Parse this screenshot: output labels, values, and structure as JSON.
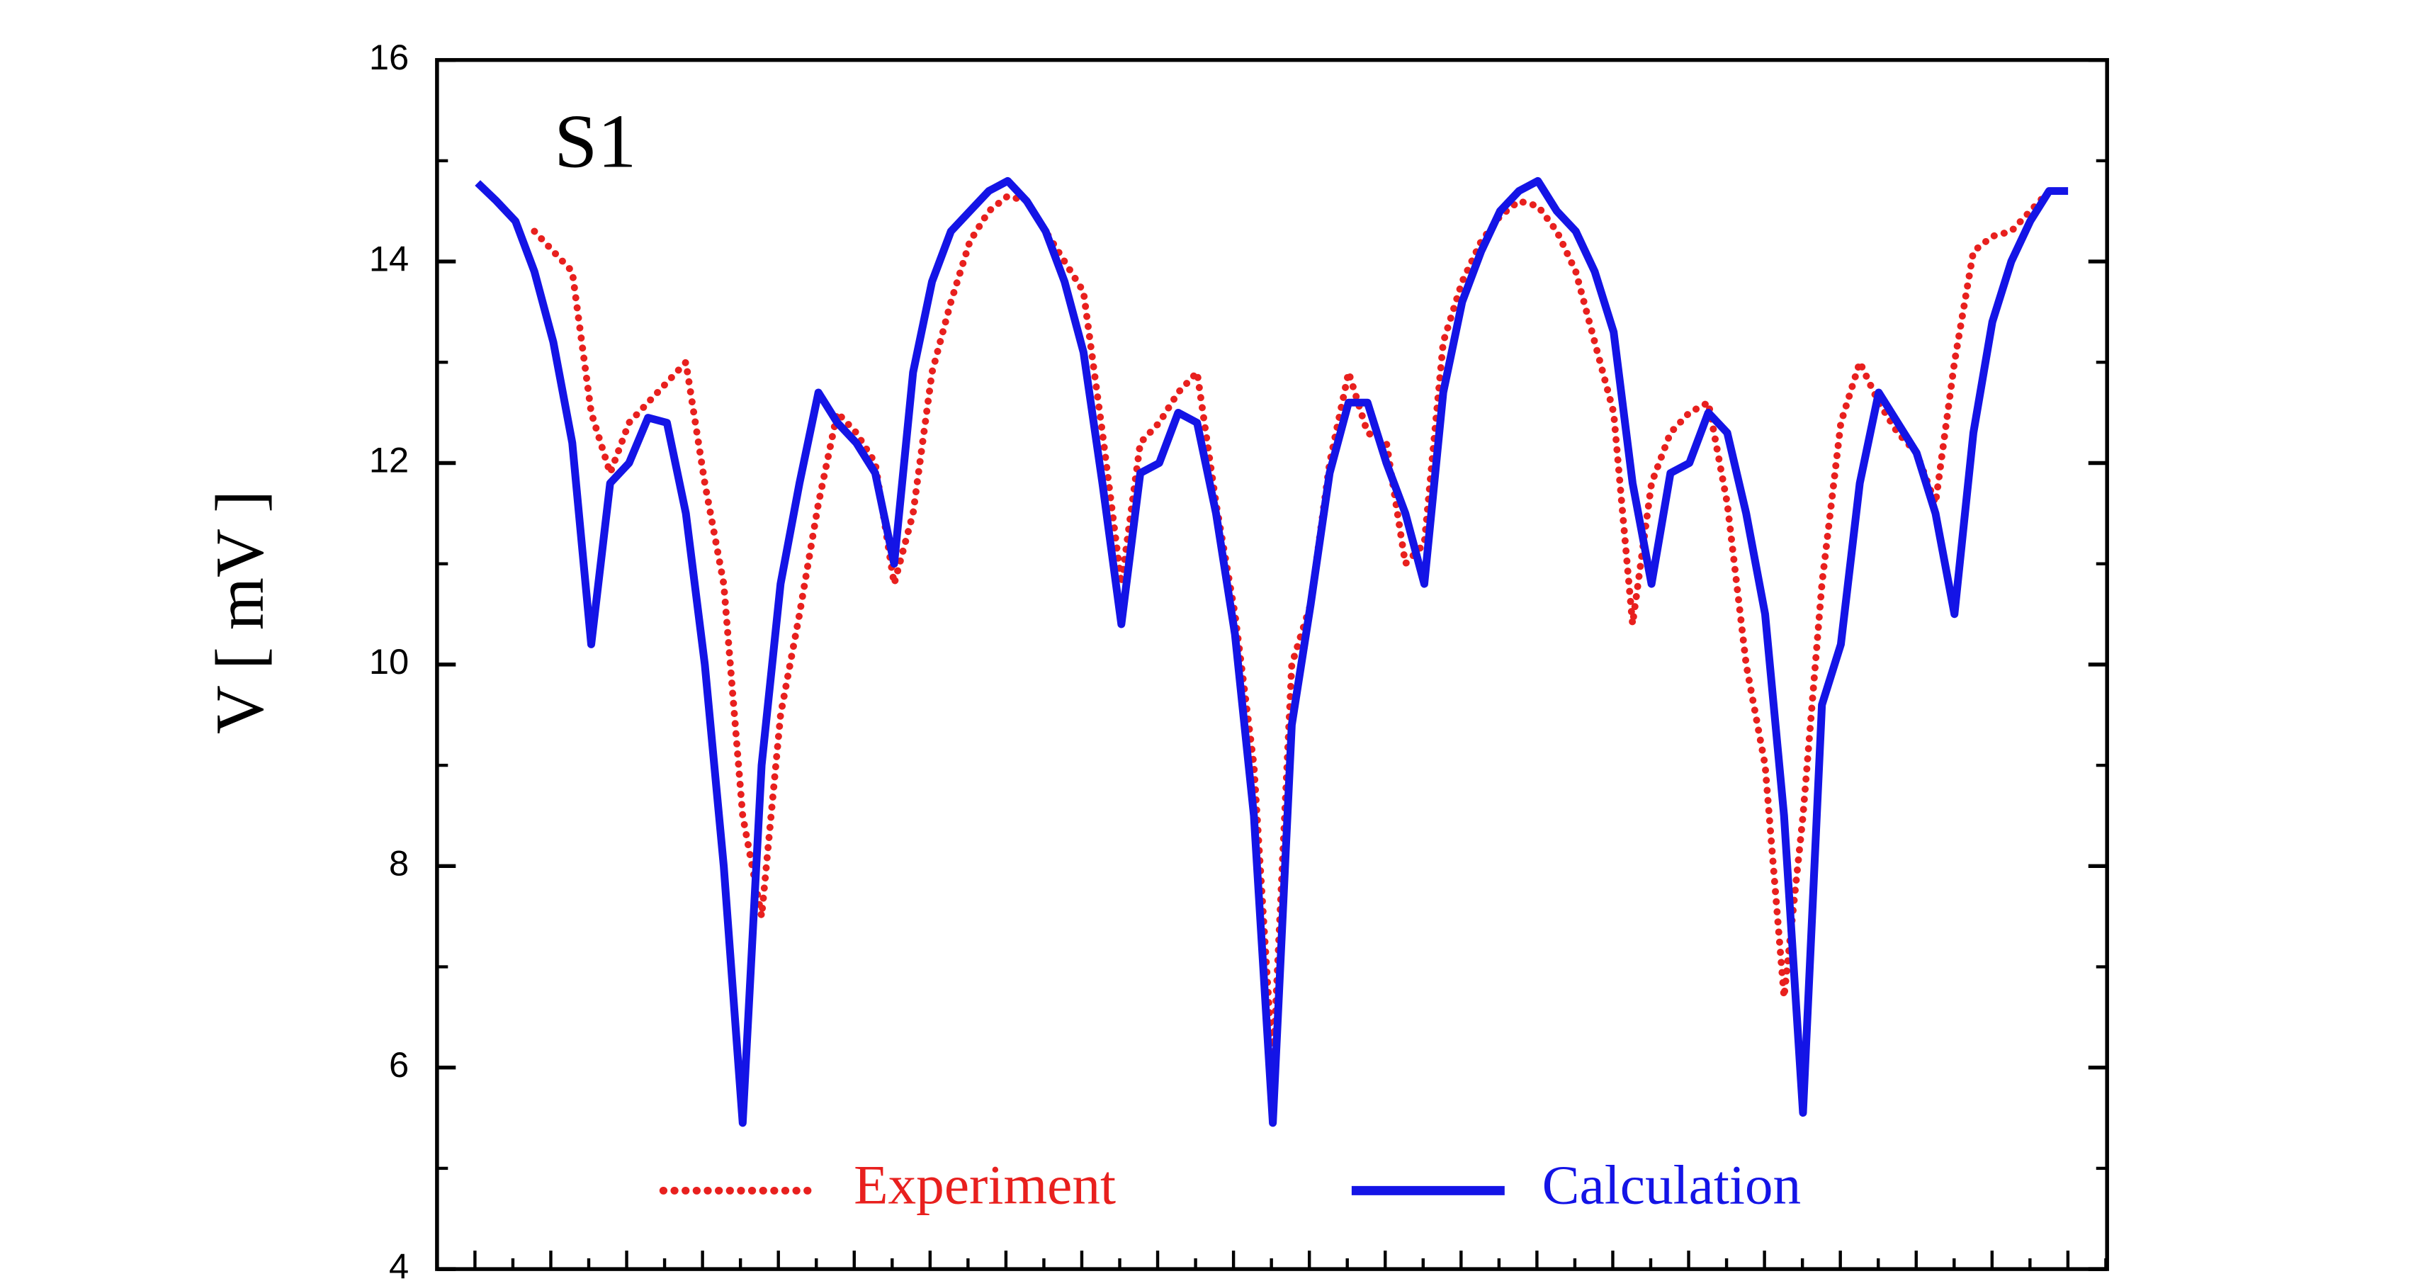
{
  "chart_data": {
    "type": "line",
    "annotation": "S1",
    "ylabel": "V [ mV ]",
    "ylim": [
      4,
      16
    ],
    "yticks": [
      4,
      6,
      8,
      10,
      12,
      14,
      16
    ],
    "legend": "bottom",
    "series": [
      {
        "name": "Experiment",
        "color": "#e8201e",
        "style": "dotted",
        "values": [
          null,
          null,
          null,
          14.3,
          14.1,
          13.9,
          12.5,
          11.9,
          12.4,
          12.6,
          12.8,
          13.0,
          11.8,
          10.8,
          8.5,
          7.5,
          9.5,
          10.5,
          11.6,
          12.5,
          12.3,
          12.0,
          10.8,
          11.5,
          12.9,
          13.6,
          14.2,
          14.5,
          14.65,
          14.6,
          14.3,
          14.0,
          13.7,
          12.3,
          10.8,
          12.2,
          12.4,
          12.7,
          12.9,
          11.6,
          10.5,
          9.0,
          6.0,
          10.0,
          10.6,
          12.0,
          12.9,
          12.3,
          12.2,
          11.0,
          11.2,
          13.2,
          13.8,
          14.2,
          14.45,
          14.6,
          14.55,
          14.3,
          13.9,
          13.2,
          12.5,
          10.4,
          11.8,
          12.3,
          12.5,
          12.6,
          11.6,
          10.0,
          9.0,
          6.7,
          8.5,
          10.8,
          12.4,
          13.0,
          12.6,
          12.3,
          12.1,
          11.6,
          13.0,
          14.1,
          14.25,
          14.3,
          14.5,
          14.7,
          null
        ]
      },
      {
        "name": "Calculation",
        "color": "#1414e6",
        "style": "solid",
        "values": [
          14.78,
          14.6,
          14.4,
          13.9,
          13.2,
          12.2,
          10.2,
          11.8,
          12.0,
          12.45,
          12.4,
          11.5,
          10.0,
          8.0,
          5.45,
          9.0,
          10.8,
          11.8,
          12.7,
          12.4,
          12.2,
          11.9,
          11.0,
          12.9,
          13.8,
          14.3,
          14.5,
          14.7,
          14.8,
          14.6,
          14.3,
          13.8,
          13.1,
          11.8,
          10.4,
          11.9,
          12.0,
          12.5,
          12.4,
          11.5,
          10.3,
          8.5,
          5.45,
          9.4,
          10.6,
          11.9,
          12.6,
          12.6,
          12.0,
          11.5,
          10.8,
          12.7,
          13.6,
          14.1,
          14.5,
          14.7,
          14.8,
          14.5,
          14.3,
          13.9,
          13.3,
          11.8,
          10.8,
          11.9,
          12.0,
          12.5,
          12.3,
          11.5,
          10.5,
          8.5,
          5.55,
          9.6,
          10.2,
          11.8,
          12.7,
          12.4,
          12.1,
          11.5,
          10.5,
          12.3,
          13.4,
          14.0,
          14.4,
          14.7,
          14.7
        ]
      }
    ]
  }
}
